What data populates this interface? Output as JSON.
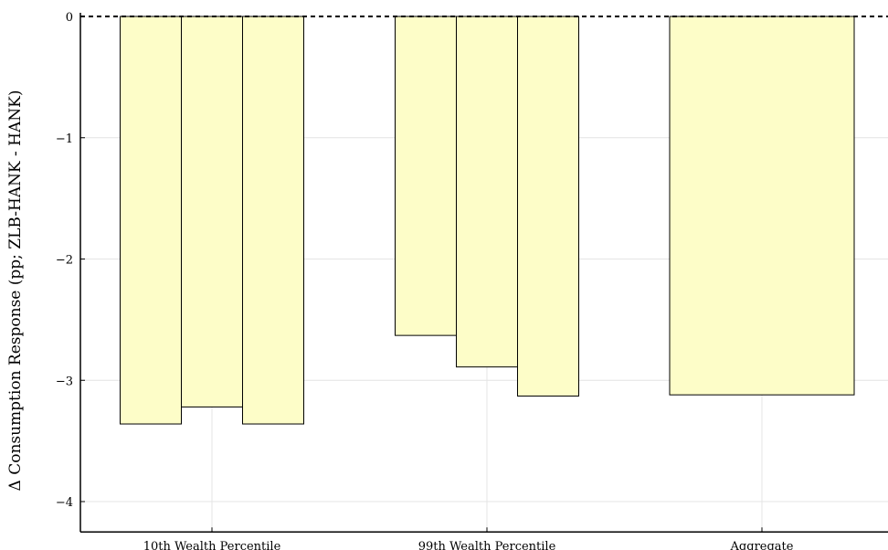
{
  "chart_data": {
    "type": "bar",
    "title": "",
    "xlabel": "",
    "ylabel": "Δ Consumption Response (pp; ZLB-HANK - HANK)",
    "ylim": [
      -4.25,
      0
    ],
    "yticks": [
      0,
      -1,
      -2,
      -3,
      -4
    ],
    "ytick_labels": [
      "0",
      "−1",
      "−2",
      "−3",
      "−4"
    ],
    "grid": true,
    "zero_line": "dashed",
    "bar_color": "#fdfdc8",
    "groups": [
      {
        "label": "10th Wealth Percentile",
        "values": [
          -3.36,
          -3.22,
          -3.36
        ]
      },
      {
        "label": "99th Wealth Percentile",
        "values": [
          -2.63,
          -2.89,
          -3.13
        ]
      },
      {
        "label": "Aggregate",
        "values": [
          -3.12
        ]
      }
    ]
  }
}
